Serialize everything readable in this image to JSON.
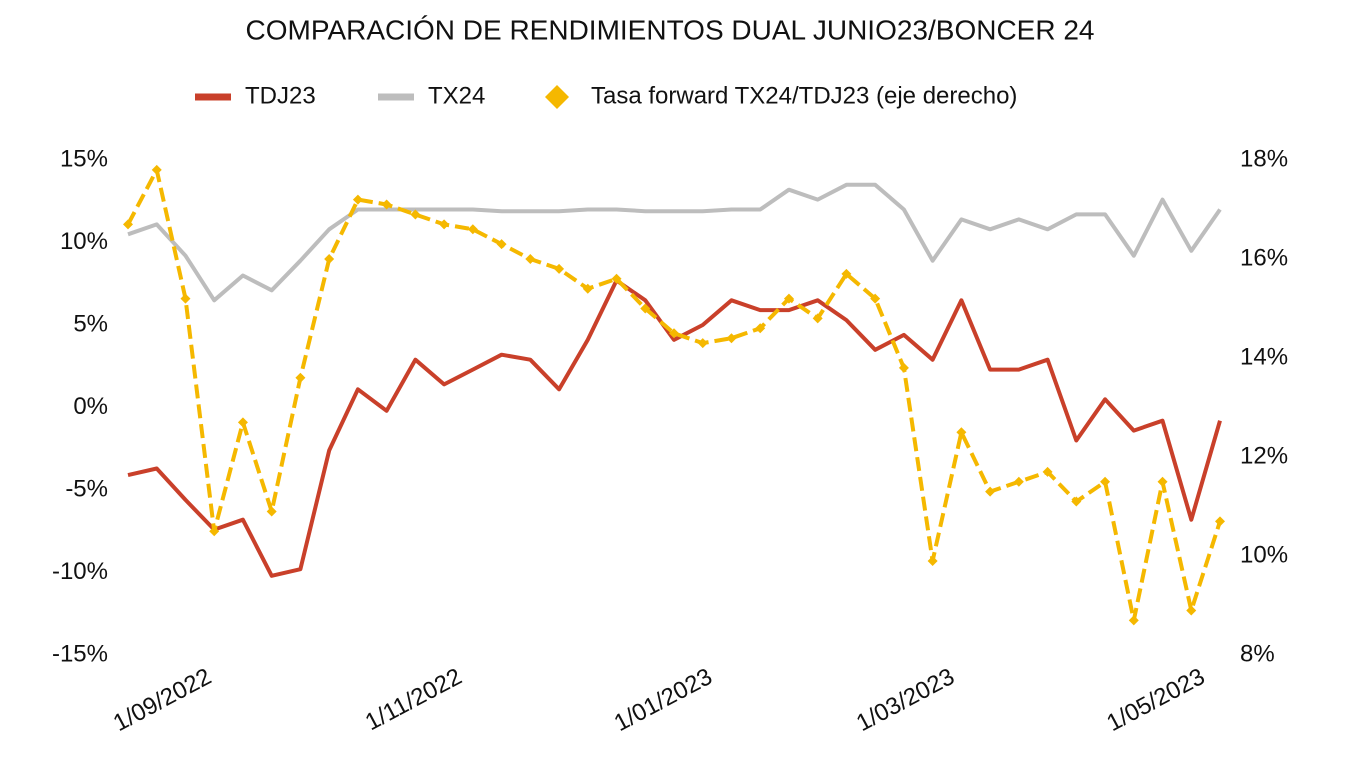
{
  "chart_data": {
    "type": "line",
    "title": "COMPARACIÓN DE RENDIMIENTOS DUAL JUNIO23/BONCER 24",
    "x": [
      "2022-08-12",
      "2022-08-19",
      "2022-08-26",
      "2022-09-02",
      "2022-09-09",
      "2022-09-16",
      "2022-09-23",
      "2022-09-30",
      "2022-10-07",
      "2022-10-14",
      "2022-10-21",
      "2022-10-28",
      "2022-11-04",
      "2022-11-11",
      "2022-11-18",
      "2022-11-25",
      "2022-12-02",
      "2022-12-09",
      "2022-12-16",
      "2022-12-23",
      "2022-12-30",
      "2023-01-06",
      "2023-01-13",
      "2023-01-20",
      "2023-01-27",
      "2023-02-03",
      "2023-02-10",
      "2023-02-17",
      "2023-02-24",
      "2023-03-03",
      "2023-03-10",
      "2023-03-17",
      "2023-03-24",
      "2023-03-31",
      "2023-04-07",
      "2023-04-14",
      "2023-04-21",
      "2023-04-28",
      "2023-05-05"
    ],
    "series": [
      {
        "name": "TDJ23",
        "color": "#c9402a",
        "values": [
          -4.1,
          -3.7,
          -5.6,
          -7.4,
          -6.8,
          -10.2,
          -9.8,
          -2.6,
          1.1,
          -0.2,
          2.9,
          1.4,
          2.3,
          3.2,
          2.9,
          1.1,
          4.1,
          7.7,
          6.5,
          4.1,
          5.0,
          6.5,
          5.9,
          5.9,
          6.5,
          5.3,
          3.5,
          4.4,
          2.9,
          6.5,
          2.3,
          2.3,
          2.9,
          -2.0,
          0.5,
          -1.4,
          -0.8,
          -6.8,
          -0.8
        ]
      },
      {
        "name": "TX24",
        "color": "#bdbdbd",
        "values": [
          10.5,
          11.1,
          9.2,
          6.5,
          8.0,
          7.1,
          8.9,
          10.8,
          12.0,
          12.0,
          12.0,
          12.0,
          12.0,
          11.9,
          11.9,
          11.9,
          12.0,
          12.0,
          11.9,
          11.9,
          11.9,
          12.0,
          12.0,
          13.2,
          12.6,
          13.5,
          13.5,
          12.0,
          8.9,
          11.4,
          10.8,
          11.4,
          10.8,
          11.7,
          11.7,
          9.2,
          12.6,
          9.5,
          12.0
        ]
      },
      {
        "name": "Tasa forward TX24/TDJ23 (eje derecho)",
        "color": "#f5b800",
        "axis": "y2",
        "values": [
          16.7,
          17.8,
          15.2,
          10.5,
          12.7,
          10.9,
          13.6,
          16.0,
          17.2,
          17.1,
          16.9,
          16.7,
          16.6,
          16.3,
          16.0,
          15.8,
          15.4,
          15.6,
          15.0,
          14.5,
          14.3,
          14.4,
          14.6,
          15.2,
          14.8,
          15.7,
          15.2,
          13.8,
          9.9,
          12.5,
          11.3,
          11.5,
          11.7,
          11.1,
          11.5,
          8.7,
          11.5,
          8.9,
          10.7
        ]
      }
    ],
    "xlim": [
      "2022-08-12",
      "2023-05-05"
    ],
    "xticks": [
      {
        "value": "2022-09-01",
        "label": "1/09/2022"
      },
      {
        "value": "2022-11-01",
        "label": "1/11/2022"
      },
      {
        "value": "2023-01-01",
        "label": "1/01/2023"
      },
      {
        "value": "2023-03-01",
        "label": "1/03/2023"
      },
      {
        "value": "2023-05-01",
        "label": "1/05/2023"
      }
    ],
    "ylim": [
      -15,
      15
    ],
    "yticks": [
      {
        "value": -15,
        "label": "-15%"
      },
      {
        "value": -10,
        "label": "-10%"
      },
      {
        "value": -5,
        "label": "-5%"
      },
      {
        "value": 0,
        "label": "0%"
      },
      {
        "value": 5,
        "label": "5%"
      },
      {
        "value": 10,
        "label": "10%"
      },
      {
        "value": 15,
        "label": "15%"
      }
    ],
    "y2lim": [
      8,
      18
    ],
    "y2ticks": [
      {
        "value": 8,
        "label": "8%"
      },
      {
        "value": 10,
        "label": "10%"
      },
      {
        "value": 12,
        "label": "12%"
      },
      {
        "value": 14,
        "label": "14%"
      },
      {
        "value": 16,
        "label": "16%"
      },
      {
        "value": 18,
        "label": "18%"
      }
    ],
    "grid": false,
    "legend": "top"
  }
}
